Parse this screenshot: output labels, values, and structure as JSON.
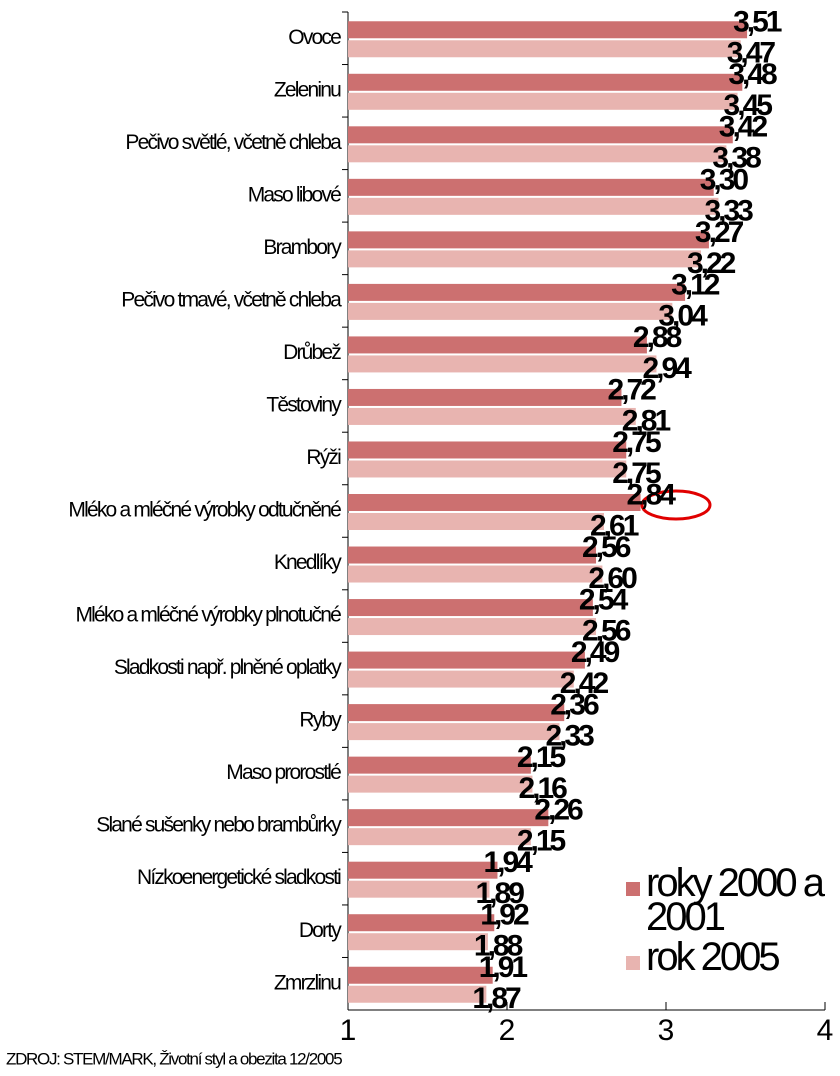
{
  "chart_data": {
    "type": "bar",
    "orientation": "horizontal",
    "categories": [
      "Ovoce",
      "Zeleninu",
      "Pečivo světlé, včetně chleba",
      "Maso libové",
      "Brambory",
      "Pečivo tmavé, včetně chleba",
      "Drůbež",
      "Těstoviny",
      "Rýži",
      "Mléko a mléčné výrobky odtučněné",
      "Knedlíky",
      "Mléko a mléčné výrobky plnotučné",
      "Sladkosti např. plněné oplatky",
      "Ryby",
      "Maso prorostlé",
      "Slané sušenky nebo brambůrky",
      "Nízkoenergetické sladkosti",
      "Dorty",
      "Zmrzlinu"
    ],
    "series": [
      {
        "name": "roky 2000 a 2001",
        "color": "#cc7070",
        "values": [
          3.51,
          3.48,
          3.42,
          3.3,
          3.27,
          3.12,
          2.88,
          2.72,
          2.75,
          2.84,
          2.56,
          2.54,
          2.49,
          2.36,
          2.15,
          2.26,
          1.94,
          1.92,
          1.91
        ],
        "value_labels": [
          "3,51",
          "3,48",
          "3,42",
          "3,30",
          "3,27",
          "3,12",
          "2,88",
          "2,72",
          "2,75",
          "2,84",
          "2,56",
          "2,54",
          "2,49",
          "2,36",
          "2,15",
          "2,26",
          "1,94",
          "1,92",
          "1,91"
        ]
      },
      {
        "name": "rok 2005",
        "color": "#e8b4b0",
        "values": [
          3.47,
          3.45,
          3.38,
          3.33,
          3.22,
          3.04,
          2.94,
          2.81,
          2.75,
          2.61,
          2.6,
          2.56,
          2.42,
          2.33,
          2.16,
          2.15,
          1.89,
          1.88,
          1.87
        ],
        "value_labels": [
          "3,47",
          "3,45",
          "3,38",
          "3,33",
          "3,22",
          "3,04",
          "2,94",
          "2,81",
          "2,75",
          "2,61",
          "2,60",
          "2,56",
          "2,42",
          "2,33",
          "2,16",
          "2,15",
          "1,89",
          "1,88",
          "1,87"
        ]
      }
    ],
    "xlim": [
      1,
      4
    ],
    "xticks": [
      1,
      2,
      3,
      4
    ],
    "legend": "lower right",
    "source": "ZDROJ: STEM/MARK, Životní styl a obezita 12/2005"
  }
}
